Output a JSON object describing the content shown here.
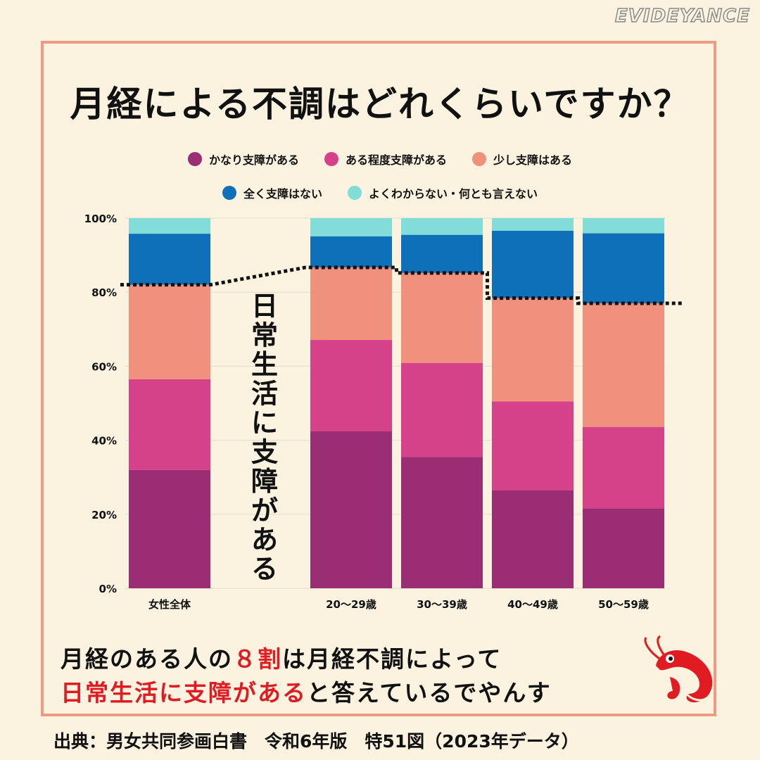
{
  "brand": "EVIDEYANCE",
  "title": "月経による不調はどれくらいですか？",
  "callout": "日常生活に支障がある",
  "caption": {
    "line1_a": "月経のある人の",
    "line1_highlight": "８割",
    "line1_b": "は月経不調によって",
    "line2_highlight": "日常生活に支障がある",
    "line2_b": "と答えているでやんす"
  },
  "source": "出典：男女共同参画白書　令和6年版　特51図（2023年データ）",
  "colors": {
    "background": "#fbf3e0",
    "frame": "#ee9a85",
    "accent_red": "#e11b22"
  },
  "chart_data": {
    "type": "bar",
    "stacked": true,
    "categories": [
      "女性全体",
      "20〜29歳",
      "30〜39歳",
      "40〜49歳",
      "50〜59歳"
    ],
    "series": [
      {
        "name": "かなり支障がある",
        "color": "#9b2d74",
        "values": [
          32,
          42.4,
          35.5,
          26.5,
          21.6
        ]
      },
      {
        "name": "ある程度支障がある",
        "color": "#d6428a",
        "values": [
          24.5,
          24.7,
          25.4,
          24,
          22
        ]
      },
      {
        "name": "少し支障はある",
        "color": "#f0917e",
        "values": [
          25.5,
          19.6,
          24.3,
          27.9,
          33.4
        ]
      },
      {
        "name": "全く支障はない",
        "color": "#0e70b8",
        "values": [
          13.8,
          8.4,
          10.3,
          18.2,
          18.9
        ]
      },
      {
        "name": "よくわからない・何とも言えない",
        "color": "#82dcd8",
        "values": [
          4.2,
          4.9,
          4.5,
          3.4,
          4.1
        ]
      }
    ],
    "y_ticks": [
      "0%",
      "20%",
      "40%",
      "60%",
      "80%",
      "100%"
    ],
    "ylim": [
      0,
      100
    ],
    "legend_position": "top",
    "grid": true,
    "annotation": {
      "label": "日常生活に支障がある",
      "style": "dotted line at top of the three 支障 segments"
    }
  }
}
